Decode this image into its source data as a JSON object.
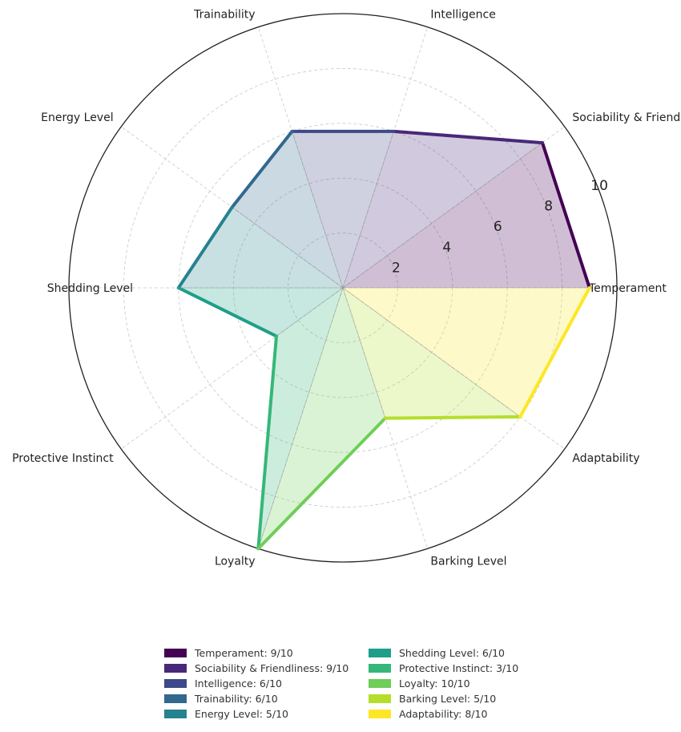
{
  "chart_data": {
    "type": "radar",
    "title": "",
    "rmax": 10,
    "radial_ticks": [
      2,
      4,
      6,
      8,
      10
    ],
    "radial_tick_labels": [
      "2",
      "4",
      "6",
      "8",
      "10"
    ],
    "categories": [
      "Temperament",
      "Sociability & Friendliness",
      "Intelligence",
      "Trainability",
      "Energy Level",
      "Shedding Level",
      "Protective Instinct",
      "Loyalty",
      "Barking Level",
      "Adaptability"
    ],
    "values": [
      9,
      9,
      6,
      6,
      5,
      6,
      3,
      10,
      5,
      8
    ],
    "colors": [
      "#440154",
      "#482878",
      "#3e4989",
      "#31688e",
      "#26828e",
      "#1f9e89",
      "#35b779",
      "#6ece58",
      "#b5de2b",
      "#fde725"
    ],
    "legend": {
      "placement": "bottom-center",
      "columns": 2,
      "entries": [
        "Temperament: 9/10",
        "Sociability & Friendliness: 9/10",
        "Intelligence: 6/10",
        "Trainability: 6/10",
        "Energy Level: 5/10",
        "Shedding Level: 6/10",
        "Protective Instinct: 3/10",
        "Loyalty: 10/10",
        "Barking Level: 5/10",
        "Adaptability: 8/10"
      ]
    },
    "grid": true
  }
}
